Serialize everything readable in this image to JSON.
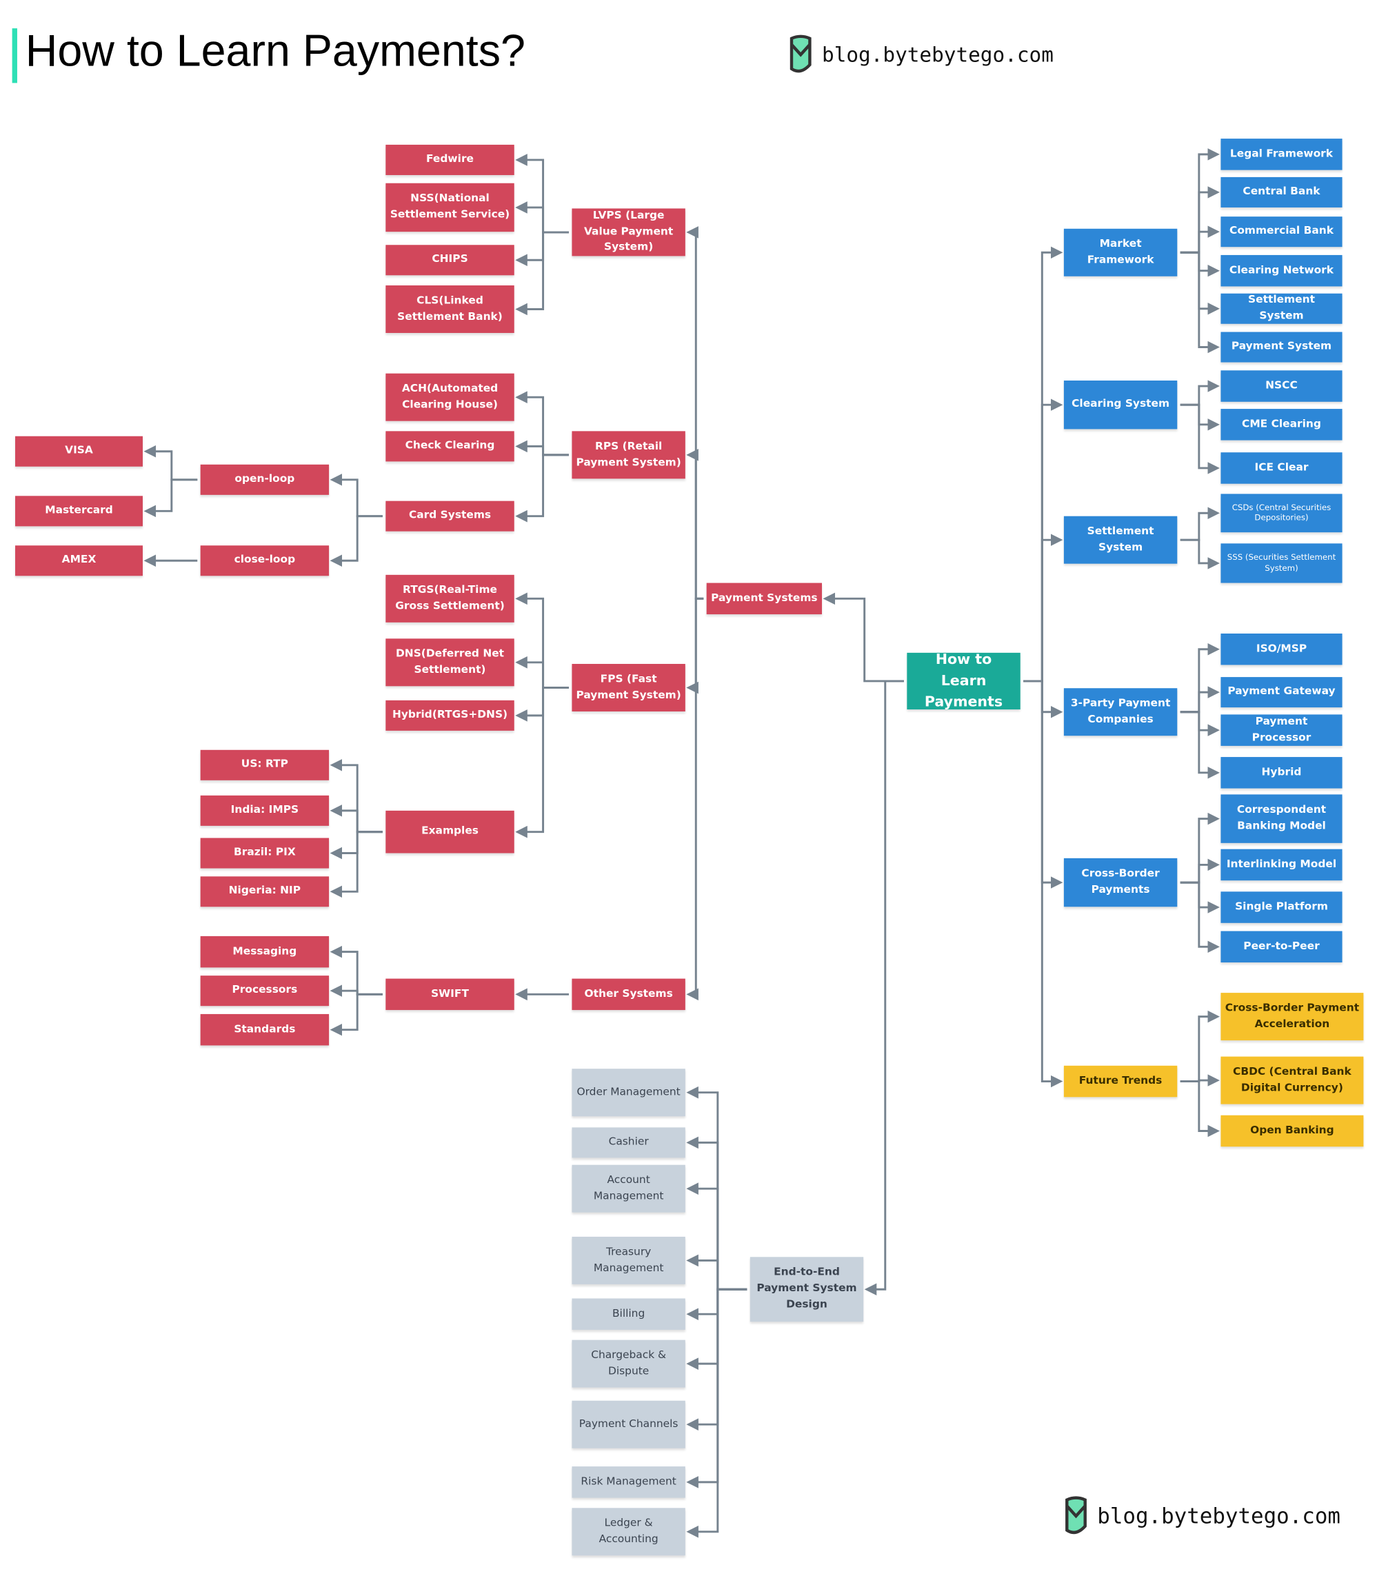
{
  "header": {
    "title": "How to Learn Payments?",
    "logo_text": "blog.bytebytego.com",
    "accent": "#2ee0b5"
  },
  "footer": {
    "logo_text": "blog.bytebytego.com"
  },
  "colors": {
    "payment_systems": "#d2475b",
    "topics": "#2d87d7",
    "future": "#f6c12a",
    "design": "#c8d2dc",
    "root": "#1aaa98",
    "connector": "#76838f"
  },
  "nodes": [
    {
      "id": "root",
      "label": "How to Learn Payments",
      "color": "teal"
    },
    {
      "id": "ps",
      "label": "Payment Systems",
      "parent": "root",
      "color": "red"
    },
    {
      "id": "lvps",
      "label": "LVPS (Large Value Payment System)",
      "parent": "ps",
      "color": "red"
    },
    {
      "id": "fedwire",
      "label": "Fedwire",
      "parent": "lvps",
      "color": "red"
    },
    {
      "id": "nss",
      "label": "NSS(National Settlement Service)",
      "parent": "lvps",
      "color": "red"
    },
    {
      "id": "chips",
      "label": "CHIPS",
      "parent": "lvps",
      "color": "red"
    },
    {
      "id": "cls",
      "label": "CLS(Linked Settlement Bank)",
      "parent": "lvps",
      "color": "red"
    },
    {
      "id": "rps",
      "label": "RPS (Retail Payment System)",
      "parent": "ps",
      "color": "red"
    },
    {
      "id": "ach",
      "label": "ACH(Automated Clearing House)",
      "parent": "rps",
      "color": "red"
    },
    {
      "id": "check",
      "label": "Check Clearing",
      "parent": "rps",
      "color": "red"
    },
    {
      "id": "card",
      "label": "Card Systems",
      "parent": "rps",
      "color": "red"
    },
    {
      "id": "open",
      "label": "open-loop",
      "parent": "card",
      "color": "red"
    },
    {
      "id": "visa",
      "label": "VISA",
      "parent": "open",
      "color": "red"
    },
    {
      "id": "mc",
      "label": "Mastercard",
      "parent": "open",
      "color": "red"
    },
    {
      "id": "close",
      "label": "close-loop",
      "parent": "card",
      "color": "red"
    },
    {
      "id": "amex",
      "label": "AMEX",
      "parent": "close",
      "color": "red"
    },
    {
      "id": "fps",
      "label": "FPS (Fast Payment System)",
      "parent": "ps",
      "color": "red"
    },
    {
      "id": "rtgs",
      "label": "RTGS(Real-Time Gross Settlement)",
      "parent": "fps",
      "color": "red"
    },
    {
      "id": "dns",
      "label": "DNS(Deferred Net Settlement)",
      "parent": "fps",
      "color": "red"
    },
    {
      "id": "hyb1",
      "label": "Hybrid(RTGS+DNS)",
      "parent": "fps",
      "color": "red"
    },
    {
      "id": "examples",
      "label": "Examples",
      "parent": "fps",
      "color": "red"
    },
    {
      "id": "rtp",
      "label": "US: RTP",
      "parent": "examples",
      "color": "red"
    },
    {
      "id": "imps",
      "label": "India: IMPS",
      "parent": "examples",
      "color": "red"
    },
    {
      "id": "pix",
      "label": "Brazil: PIX",
      "parent": "examples",
      "color": "red"
    },
    {
      "id": "nip",
      "label": "Nigeria: NIP",
      "parent": "examples",
      "color": "red"
    },
    {
      "id": "other",
      "label": "Other Systems",
      "parent": "ps",
      "color": "red"
    },
    {
      "id": "swift",
      "label": "SWIFT",
      "parent": "other",
      "color": "red"
    },
    {
      "id": "msg",
      "label": "Messaging",
      "parent": "swift",
      "color": "red"
    },
    {
      "id": "proc",
      "label": "Processors",
      "parent": "swift",
      "color": "red"
    },
    {
      "id": "std",
      "label": "Standards",
      "parent": "swift",
      "color": "red"
    },
    {
      "id": "mf",
      "label": "Market Framework",
      "parent": "root",
      "color": "blue"
    },
    {
      "id": "legal",
      "label": "Legal Framework",
      "parent": "mf",
      "color": "blue"
    },
    {
      "id": "cb",
      "label": "Central Bank",
      "parent": "mf",
      "color": "blue"
    },
    {
      "id": "comb",
      "label": "Commercial Bank",
      "parent": "mf",
      "color": "blue"
    },
    {
      "id": "cn",
      "label": "Clearing Network",
      "parent": "mf",
      "color": "blue"
    },
    {
      "id": "ss1",
      "label": "Settlement System",
      "parent": "mf",
      "color": "blue"
    },
    {
      "id": "pys",
      "label": "Payment System",
      "parent": "mf",
      "color": "blue"
    },
    {
      "id": "cs",
      "label": "Clearing System",
      "parent": "root",
      "color": "blue"
    },
    {
      "id": "nscc",
      "label": "NSCC",
      "parent": "cs",
      "color": "blue"
    },
    {
      "id": "cme",
      "label": "CME Clearing",
      "parent": "cs",
      "color": "blue"
    },
    {
      "id": "ice",
      "label": "ICE Clear",
      "parent": "cs",
      "color": "blue"
    },
    {
      "id": "ss",
      "label": "Settlement System",
      "parent": "root",
      "color": "blue"
    },
    {
      "id": "csd",
      "label": "CSDs (Central Securities Depositories)",
      "parent": "ss",
      "color": "blue",
      "small": true
    },
    {
      "id": "sss",
      "label": "SSS (Securities Settlement System)",
      "parent": "ss",
      "color": "blue",
      "small": true
    },
    {
      "id": "tp",
      "label": "3-Party Payment Companies",
      "parent": "root",
      "color": "blue"
    },
    {
      "id": "iso",
      "label": "ISO/MSP",
      "parent": "tp",
      "color": "blue"
    },
    {
      "id": "pg",
      "label": "Payment Gateway",
      "parent": "tp",
      "color": "blue"
    },
    {
      "id": "pp",
      "label": "Payment Processor",
      "parent": "tp",
      "color": "blue"
    },
    {
      "id": "hyb2",
      "label": "Hybrid",
      "parent": "tp",
      "color": "blue"
    },
    {
      "id": "cbp",
      "label": "Cross-Border Payments",
      "parent": "root",
      "color": "blue"
    },
    {
      "id": "corr",
      "label": "Correspondent Banking Model",
      "parent": "cbp",
      "color": "blue"
    },
    {
      "id": "inter",
      "label": "Interlinking Model",
      "parent": "cbp",
      "color": "blue"
    },
    {
      "id": "single",
      "label": "Single Platform",
      "parent": "cbp",
      "color": "blue"
    },
    {
      "id": "p2p",
      "label": "Peer-to-Peer",
      "parent": "cbp",
      "color": "blue"
    },
    {
      "id": "ft",
      "label": "Future Trends",
      "parent": "root",
      "color": "yellow"
    },
    {
      "id": "cbpa",
      "label": "Cross-Border Payment Acceleration",
      "parent": "ft",
      "color": "yellow"
    },
    {
      "id": "cbdc",
      "label": "CBDC (Central Bank Digital Currency)",
      "parent": "ft",
      "color": "yellow"
    },
    {
      "id": "ob",
      "label": "Open Banking",
      "parent": "ft",
      "color": "yellow"
    },
    {
      "id": "e2e",
      "label": "End-to-End Payment System Design",
      "parent": "root",
      "color": "gray",
      "bold": true
    },
    {
      "id": "om",
      "label": "Order Management",
      "parent": "e2e",
      "color": "gray"
    },
    {
      "id": "cash",
      "label": "Cashier",
      "parent": "e2e",
      "color": "gray"
    },
    {
      "id": "am",
      "label": "Account Management",
      "parent": "e2e",
      "color": "gray"
    },
    {
      "id": "tm",
      "label": "Treasury Management",
      "parent": "e2e",
      "color": "gray"
    },
    {
      "id": "bill",
      "label": "Billing",
      "parent": "e2e",
      "color": "gray"
    },
    {
      "id": "cbd",
      "label": "Chargeback & Dispute",
      "parent": "e2e",
      "color": "gray"
    },
    {
      "id": "pc",
      "label": "Payment Channels",
      "parent": "e2e",
      "color": "gray"
    },
    {
      "id": "risk",
      "label": "Risk Management",
      "parent": "e2e",
      "color": "gray"
    },
    {
      "id": "ledger",
      "label": "Ledger & Accounting",
      "parent": "e2e",
      "color": "gray"
    }
  ]
}
